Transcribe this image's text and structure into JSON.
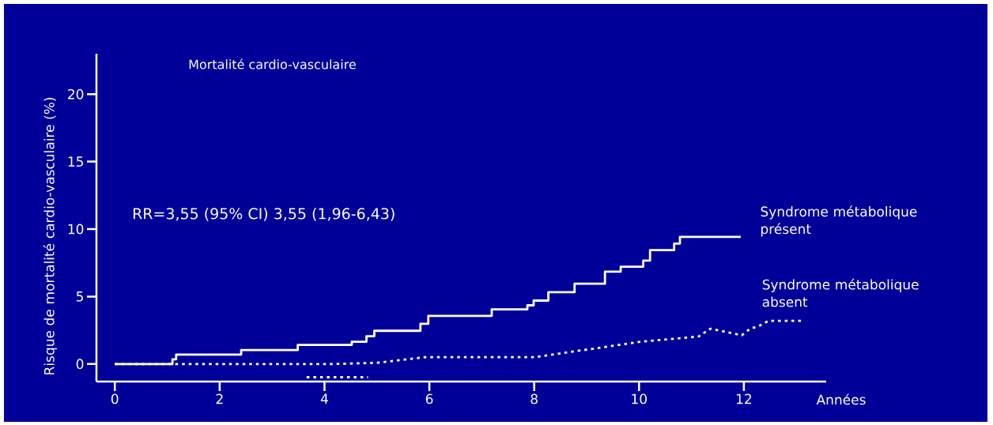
{
  "chart_data": {
    "type": "line",
    "title": "Mortalité cardio-vasculaire",
    "xlabel": "Années",
    "ylabel": "Risque de mortalité cardio-vasculaire (%)",
    "annotations": [
      "RR=3,55 (95% CI) 3,55 (1,96-6,43)"
    ],
    "xlim": [
      -0.35,
      13.57
    ],
    "ylim": [
      -1.3,
      23
    ],
    "xticks": [
      0,
      2,
      4,
      6,
      8,
      10,
      12
    ],
    "yticks": [
      0,
      5,
      10,
      15,
      20
    ],
    "series": [
      {
        "name": "Syndrome métabolique présent",
        "type": "step",
        "color": "#ffffff",
        "line_style": "solid",
        "x": [
          0,
          1.1,
          1.17,
          2.41,
          3.49,
          4.52,
          4.8,
          4.95,
          5.83,
          5.98,
          7.19,
          7.87,
          7.99,
          8.27,
          8.77,
          9.35,
          9.65,
          10.08,
          10.21,
          10.67,
          10.78,
          11.94
        ],
        "values": [
          0,
          0.35,
          0.7,
          1.03,
          1.42,
          1.65,
          2.06,
          2.46,
          2.98,
          3.57,
          4.05,
          4.35,
          4.7,
          5.32,
          5.95,
          6.84,
          7.21,
          7.66,
          8.44,
          8.93,
          9.42,
          9.42
        ]
      },
      {
        "name": "Syndrome métabolique absent",
        "type": "line",
        "color": "#ffffff",
        "line_style": "dotted",
        "x": [
          0,
          1.13,
          4.2,
          5.0,
          5.91,
          6.01,
          8.02,
          10.03,
          11.14,
          11.36,
          11.96,
          12.12,
          12.29,
          12.47,
          13.12
        ],
        "values": [
          0,
          0,
          0,
          0.09,
          0.5,
          0.51,
          0.51,
          1.65,
          2.04,
          2.62,
          2.13,
          2.62,
          2.82,
          3.2,
          3.2
        ]
      },
      {
        "color": "#ffffff",
        "line_style": "dotted",
        "x": [
          3.66,
          4.83
        ],
        "values": [
          -0.98,
          -0.98
        ]
      }
    ]
  }
}
